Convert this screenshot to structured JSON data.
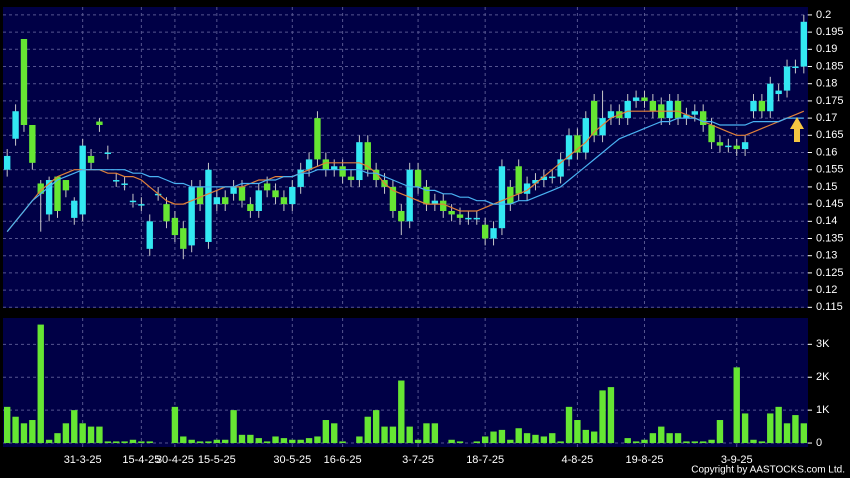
{
  "chart_data": [
    {
      "type": "candlestick",
      "open": [
        0.155,
        0.164,
        0.193,
        0.168,
        0.151,
        0.142,
        0.153,
        0.152,
        0.141,
        0.142,
        0.159,
        0.169,
        0.16,
        0.152,
        0.151,
        0.146,
        0.145,
        0.132,
        0.148,
        0.145,
        0.141,
        0.138,
        0.133,
        0.15,
        0.134,
        0.145,
        0.147,
        0.148,
        0.15,
        0.145,
        0.143,
        0.151,
        0.149,
        0.147,
        0.145,
        0.15,
        0.155,
        0.17,
        0.158,
        0.155,
        0.156,
        0.153,
        0.152,
        0.163,
        0.155,
        0.152,
        0.15,
        0.143,
        0.14,
        0.155,
        0.15,
        0.145,
        0.146,
        0.143,
        0.142,
        0.141,
        0.141,
        0.139,
        0.135,
        0.138,
        0.15,
        0.156,
        0.148,
        0.151,
        0.152,
        0.153,
        0.153,
        0.158,
        0.165,
        0.16,
        0.175,
        0.165,
        0.17,
        0.172,
        0.17,
        0.175,
        0.176,
        0.175,
        0.174,
        0.17,
        0.175,
        0.17,
        0.171,
        0.172,
        0.168,
        0.163,
        0.162,
        0.162,
        0.161,
        0.172,
        0.175,
        0.172,
        0.177,
        0.178,
        0.185,
        0.185
      ],
      "high": [
        0.161,
        0.174,
        0.193,
        0.168,
        0.152,
        0.153,
        0.153,
        0.152,
        0.147,
        0.164,
        0.161,
        0.17,
        0.162,
        0.154,
        0.153,
        0.148,
        0.147,
        0.142,
        0.15,
        0.147,
        0.143,
        0.14,
        0.152,
        0.152,
        0.157,
        0.149,
        0.149,
        0.152,
        0.152,
        0.147,
        0.151,
        0.153,
        0.151,
        0.149,
        0.152,
        0.157,
        0.16,
        0.172,
        0.16,
        0.158,
        0.158,
        0.155,
        0.165,
        0.165,
        0.157,
        0.154,
        0.152,
        0.145,
        0.157,
        0.157,
        0.152,
        0.148,
        0.148,
        0.145,
        0.144,
        0.143,
        0.143,
        0.141,
        0.14,
        0.158,
        0.152,
        0.158,
        0.153,
        0.154,
        0.155,
        0.155,
        0.16,
        0.167,
        0.167,
        0.172,
        0.177,
        0.178,
        0.174,
        0.174,
        0.177,
        0.178,
        0.178,
        0.177,
        0.176,
        0.177,
        0.177,
        0.173,
        0.174,
        0.174,
        0.17,
        0.165,
        0.164,
        0.164,
        0.165,
        0.177,
        0.177,
        0.182,
        0.18,
        0.187,
        0.187,
        0.2
      ],
      "low": [
        0.153,
        0.162,
        0.166,
        0.155,
        0.137,
        0.14,
        0.141,
        0.147,
        0.139,
        0.14,
        0.155,
        0.166,
        0.158,
        0.15,
        0.149,
        0.144,
        0.143,
        0.13,
        0.146,
        0.138,
        0.134,
        0.129,
        0.131,
        0.143,
        0.132,
        0.143,
        0.143,
        0.146,
        0.144,
        0.141,
        0.141,
        0.147,
        0.145,
        0.143,
        0.143,
        0.148,
        0.153,
        0.156,
        0.153,
        0.153,
        0.151,
        0.15,
        0.15,
        0.153,
        0.15,
        0.148,
        0.141,
        0.136,
        0.138,
        0.148,
        0.143,
        0.143,
        0.141,
        0.14,
        0.139,
        0.139,
        0.139,
        0.133,
        0.133,
        0.136,
        0.143,
        0.146,
        0.146,
        0.149,
        0.15,
        0.151,
        0.151,
        0.156,
        0.158,
        0.158,
        0.163,
        0.163,
        0.168,
        0.168,
        0.168,
        0.173,
        0.173,
        0.17,
        0.168,
        0.168,
        0.168,
        0.168,
        0.169,
        0.166,
        0.161,
        0.16,
        0.16,
        0.159,
        0.159,
        0.17,
        0.17,
        0.17,
        0.175,
        0.176,
        0.183,
        0.183
      ],
      "close": [
        0.159,
        0.172,
        0.168,
        0.157,
        0.148,
        0.152,
        0.143,
        0.149,
        0.146,
        0.162,
        0.157,
        0.168,
        0.16,
        0.152,
        0.151,
        0.146,
        0.145,
        0.14,
        0.148,
        0.14,
        0.136,
        0.132,
        0.15,
        0.145,
        0.155,
        0.147,
        0.145,
        0.15,
        0.146,
        0.143,
        0.149,
        0.149,
        0.147,
        0.145,
        0.15,
        0.155,
        0.158,
        0.158,
        0.155,
        0.156,
        0.153,
        0.152,
        0.163,
        0.155,
        0.152,
        0.15,
        0.143,
        0.14,
        0.155,
        0.15,
        0.145,
        0.146,
        0.143,
        0.142,
        0.141,
        0.141,
        0.141,
        0.135,
        0.138,
        0.156,
        0.145,
        0.148,
        0.151,
        0.152,
        0.153,
        0.153,
        0.158,
        0.165,
        0.16,
        0.17,
        0.165,
        0.17,
        0.172,
        0.17,
        0.175,
        0.176,
        0.175,
        0.172,
        0.17,
        0.175,
        0.17,
        0.171,
        0.172,
        0.168,
        0.163,
        0.162,
        0.162,
        0.161,
        0.163,
        0.175,
        0.172,
        0.18,
        0.178,
        0.185,
        0.185,
        0.198
      ],
      "up_color": "#33e8f2",
      "down_color": "#66e633",
      "series": [
        {
          "color": "#e0803a",
          "values": [
            0.137,
            0.14,
            0.143,
            0.146,
            0.149,
            0.151,
            0.153,
            0.154,
            0.155,
            0.155,
            0.155,
            0.155,
            0.154,
            0.154,
            0.153,
            0.153,
            0.152,
            0.15,
            0.148,
            0.146,
            0.145,
            0.145,
            0.146,
            0.147,
            0.148,
            0.149,
            0.15,
            0.15,
            0.15,
            0.151,
            0.152,
            0.152,
            0.153,
            0.153,
            0.153,
            0.154,
            0.155,
            0.156,
            0.157,
            0.157,
            0.157,
            0.157,
            0.157,
            0.156,
            0.154,
            0.151,
            0.149,
            0.148,
            0.147,
            0.146,
            0.145,
            0.145,
            0.145,
            0.144,
            0.143,
            0.143,
            0.143,
            0.144,
            0.145,
            0.146,
            0.147,
            0.148,
            0.149,
            0.151,
            0.153,
            0.155,
            0.157,
            0.159,
            0.161,
            0.163,
            0.166,
            0.168,
            0.17,
            0.171,
            0.172,
            0.172,
            0.172,
            0.172,
            0.172,
            0.172,
            0.172,
            0.171,
            0.17,
            0.169,
            0.168,
            0.167,
            0.166,
            0.165,
            0.165,
            0.166,
            0.167,
            0.168,
            0.169,
            0.17,
            0.171,
            0.172
          ]
        },
        {
          "color": "#4ab2f2",
          "values": [
            0.137,
            0.14,
            0.143,
            0.146,
            0.148,
            0.15,
            0.152,
            0.153,
            0.154,
            0.155,
            0.155,
            0.155,
            0.155,
            0.155,
            0.155,
            0.154,
            0.154,
            0.153,
            0.153,
            0.152,
            0.151,
            0.151,
            0.15,
            0.15,
            0.15,
            0.15,
            0.15,
            0.15,
            0.151,
            0.151,
            0.151,
            0.152,
            0.152,
            0.153,
            0.153,
            0.154,
            0.154,
            0.155,
            0.155,
            0.155,
            0.155,
            0.155,
            0.155,
            0.154,
            0.154,
            0.153,
            0.152,
            0.151,
            0.15,
            0.15,
            0.149,
            0.149,
            0.148,
            0.148,
            0.147,
            0.147,
            0.146,
            0.146,
            0.145,
            0.145,
            0.145,
            0.146,
            0.146,
            0.147,
            0.148,
            0.149,
            0.15,
            0.152,
            0.154,
            0.156,
            0.158,
            0.16,
            0.162,
            0.164,
            0.165,
            0.166,
            0.167,
            0.168,
            0.169,
            0.169,
            0.17,
            0.17,
            0.17,
            0.169,
            0.169,
            0.168,
            0.168,
            0.168,
            0.168,
            0.169,
            0.169,
            0.169,
            0.169,
            0.17,
            0.17,
            0.17
          ]
        }
      ],
      "ylim": [
        0.1148,
        0.2023
      ],
      "yticks": [
        0.115,
        0.12,
        0.125,
        0.13,
        0.135,
        0.14,
        0.145,
        0.15,
        0.155,
        0.16,
        0.165,
        0.17,
        0.175,
        0.18,
        0.185,
        0.19,
        0.195,
        0.2
      ],
      "grid": true
    },
    {
      "type": "bar",
      "color": "#66e633",
      "categories": [
        null,
        null,
        null,
        null,
        null,
        null,
        null,
        null,
        null,
        "31-3-25",
        null,
        null,
        null,
        null,
        null,
        null,
        "15-4-25",
        null,
        null,
        null,
        "30-4-25",
        null,
        null,
        null,
        null,
        "15-5-25",
        null,
        null,
        null,
        null,
        null,
        null,
        null,
        null,
        "30-5-25",
        null,
        null,
        null,
        null,
        null,
        "16-6-25",
        null,
        null,
        null,
        null,
        null,
        null,
        null,
        null,
        "3-7-25",
        null,
        null,
        null,
        null,
        null,
        null,
        null,
        "18-7-25",
        null,
        null,
        null,
        null,
        null,
        null,
        null,
        null,
        null,
        null,
        "4-8-25",
        null,
        null,
        null,
        null,
        null,
        null,
        null,
        "19-8-25",
        null,
        null,
        null,
        null,
        null,
        null,
        null,
        null,
        null,
        null,
        "3-9-25",
        null,
        null,
        null,
        null,
        null,
        null,
        null,
        null
      ],
      "values": [
        1100,
        800,
        600,
        700,
        3600,
        100,
        300,
        600,
        1000,
        600,
        500,
        500,
        50,
        50,
        50,
        100,
        50,
        50,
        0,
        0,
        1100,
        200,
        100,
        50,
        50,
        100,
        100,
        1000,
        250,
        250,
        150,
        50,
        200,
        150,
        100,
        100,
        150,
        200,
        700,
        600,
        50,
        0,
        200,
        800,
        1000,
        500,
        500,
        1900,
        500,
        100,
        600,
        600,
        0,
        100,
        50,
        0,
        50,
        200,
        350,
        400,
        100,
        450,
        300,
        250,
        200,
        300,
        50,
        1100,
        700,
        400,
        350,
        1600,
        1700,
        0,
        150,
        50,
        100,
        300,
        500,
        300,
        300,
        50,
        50,
        50,
        100,
        700,
        0,
        2300,
        900,
        100,
        50,
        900,
        1100,
        600,
        850,
        600
      ],
      "ylim": [
        -120,
        3800
      ],
      "yticks": [
        0,
        {
          "value": 1000,
          "label": "1K"
        },
        {
          "value": 2000,
          "label": "2K"
        },
        {
          "value": 3000,
          "label": "3K"
        }
      ],
      "grid": true
    }
  ],
  "copyright": "Copyright by AASTOCKS.com Ltd."
}
